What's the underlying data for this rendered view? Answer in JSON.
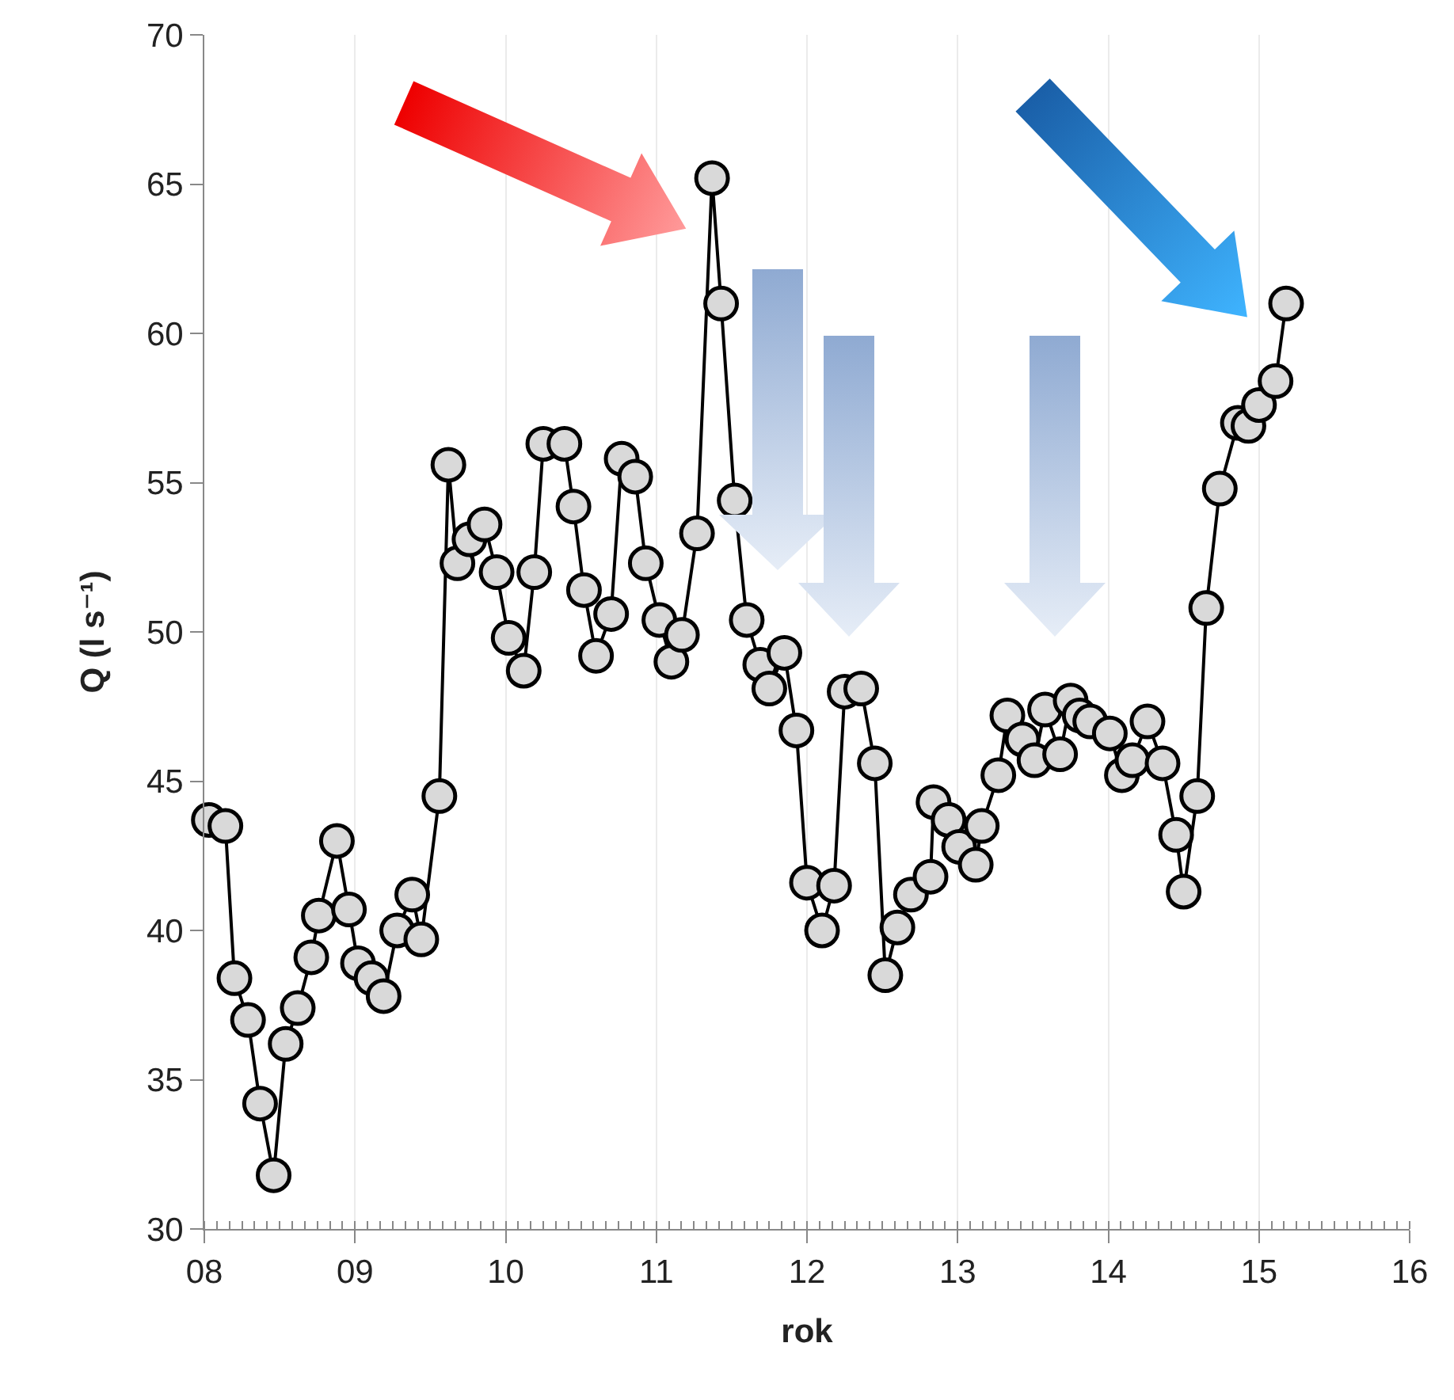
{
  "chart_data": {
    "type": "line",
    "xlabel": "rok",
    "ylabel": "Q (l s⁻¹)",
    "xlim": [
      8,
      16
    ],
    "ylim": [
      30,
      70
    ],
    "xticks": [
      {
        "value": 8,
        "label": "08"
      },
      {
        "value": 9,
        "label": "09"
      },
      10,
      11,
      12,
      13,
      14,
      15,
      16
    ],
    "yticks": [
      30,
      35,
      40,
      45,
      50,
      55,
      60,
      65,
      70
    ],
    "grid": "x",
    "marker": "circle",
    "line_style": "solid",
    "series": [
      {
        "color": "#d9d9d9",
        "x": [
          8.03,
          8.14,
          8.2,
          8.29,
          8.37,
          8.46,
          8.54,
          8.62,
          8.71,
          8.76,
          8.88,
          8.96,
          9.02,
          9.11,
          9.19,
          9.28,
          9.38,
          9.44,
          9.56,
          9.62,
          9.68,
          9.76,
          9.86,
          9.94,
          10.02,
          10.12,
          10.19,
          10.25,
          10.39,
          10.45,
          10.52,
          10.6,
          10.7,
          10.77,
          10.86,
          10.93,
          11.02,
          11.1,
          11.17,
          11.27,
          11.37,
          11.43,
          11.52,
          11.6,
          11.69,
          11.75,
          11.85,
          11.93,
          12.0,
          12.1,
          12.18,
          12.25,
          12.36,
          12.45,
          12.52,
          12.6,
          12.69,
          12.82,
          12.84,
          12.94,
          13.01,
          13.12,
          13.16,
          13.27,
          13.33,
          13.43,
          13.51,
          13.58,
          13.68,
          13.75,
          13.81,
          13.88,
          14.01,
          14.09,
          14.16,
          14.26,
          14.36,
          14.45,
          14.5,
          14.59,
          14.65,
          14.74,
          14.86,
          14.93,
          15.0,
          15.11,
          15.18
        ],
        "values": [
          43.7,
          43.5,
          38.4,
          37.0,
          34.2,
          31.8,
          36.2,
          37.4,
          39.1,
          40.5,
          43.0,
          40.7,
          38.9,
          38.4,
          37.8,
          40.0,
          41.2,
          39.7,
          44.5,
          55.6,
          52.3,
          53.1,
          53.6,
          52.0,
          49.8,
          48.7,
          52.0,
          56.3,
          56.3,
          54.2,
          51.4,
          49.2,
          50.6,
          55.8,
          55.2,
          52.3,
          50.4,
          49.0,
          49.9,
          53.3,
          65.2,
          61.0,
          54.4,
          50.4,
          48.9,
          48.1,
          49.3,
          46.7,
          41.6,
          40.0,
          41.5,
          48.0,
          48.1,
          45.6,
          38.5,
          40.1,
          41.2,
          41.8,
          44.3,
          43.7,
          42.8,
          42.2,
          43.5,
          45.2,
          47.2,
          46.4,
          45.7,
          47.4,
          45.9,
          47.7,
          47.2,
          47.0,
          46.6,
          45.2,
          45.7,
          47.0,
          45.6,
          43.2,
          41.3,
          44.5,
          50.8,
          54.8,
          57.0,
          56.9,
          57.6,
          58.4,
          61.0
        ]
      }
    ]
  }
}
